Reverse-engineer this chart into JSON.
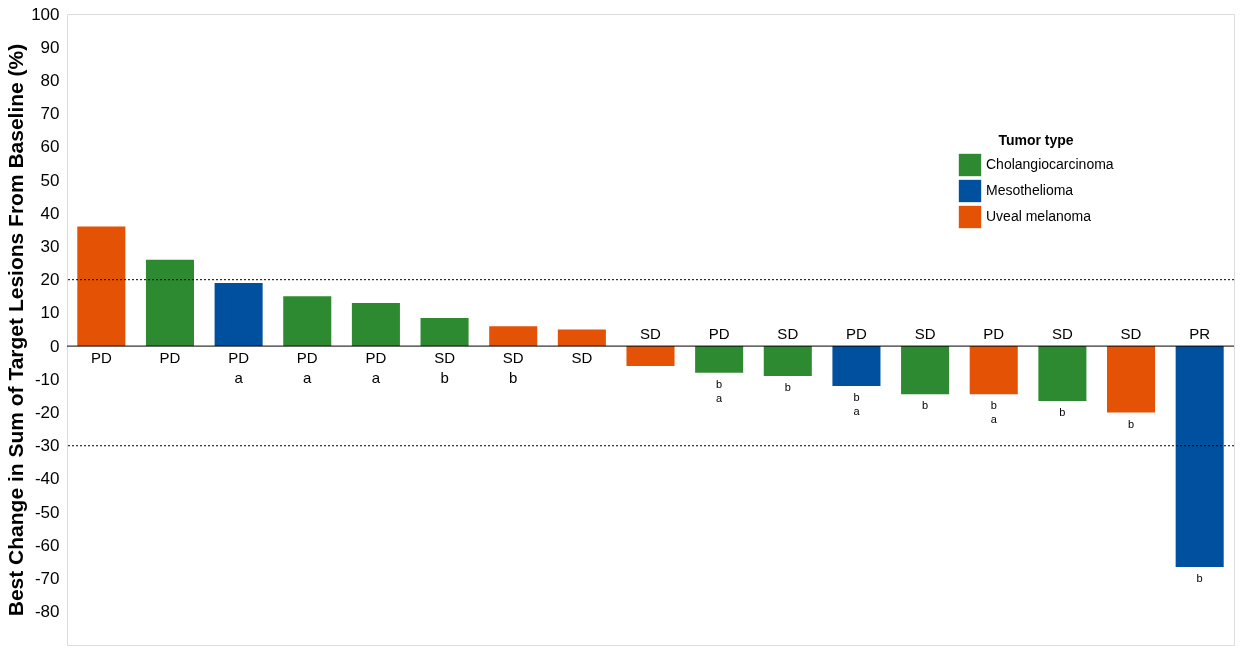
{
  "chart_data": {
    "type": "bar",
    "ylabel": "Best Change in Sum of Target Lesions From Baseline (%)",
    "legend_title": "Tumor type",
    "legend": "top right",
    "grid": false,
    "categories": [
      null,
      null,
      null,
      null,
      null,
      null,
      null,
      null,
      null,
      null,
      null,
      null,
      null,
      null,
      null,
      null,
      null
    ],
    "series": [
      {
        "name": "Cholangiocarcinoma",
        "color": "#2e8a30",
        "values": [
          null,
          26,
          null,
          15,
          13,
          8.5,
          null,
          null,
          null,
          -8,
          -9,
          null,
          -14.5,
          null,
          -16.5,
          null,
          null
        ]
      },
      {
        "name": "Mesothelioma",
        "color": "#0050a0",
        "values": [
          null,
          null,
          19,
          null,
          null,
          null,
          null,
          null,
          null,
          null,
          null,
          -12,
          null,
          null,
          null,
          null,
          -66.5
        ]
      },
      {
        "name": "Uveal melanoma",
        "color": "#e35205",
        "values": [
          36,
          null,
          null,
          null,
          null,
          null,
          6,
          5,
          -6,
          null,
          null,
          null,
          null,
          -14.5,
          null,
          -20,
          null
        ]
      }
    ],
    "value_labels": [
      "PD",
      "PD",
      "PD\na",
      "PD\na",
      "PD\na",
      "SD\nb",
      "SD\nb",
      "SD",
      "SD",
      "PD\nb\na",
      "SD\nb",
      "PD\nb\na",
      "SD\nb",
      "PD\nb\na",
      "SD\nb",
      "SD\nb",
      "PR\nb"
    ],
    "ylim": [
      -90,
      100
    ],
    "yticks": [
      -80,
      -70,
      -60,
      -50,
      -40,
      -30,
      -20,
      -10,
      0,
      10,
      20,
      30,
      40,
      50,
      60,
      70,
      80,
      90,
      100
    ],
    "ref_lines": [
      {
        "axis": "y",
        "value": 20,
        "line_style": "dotted"
      },
      {
        "axis": "y",
        "value": -30,
        "line_style": "dotted"
      }
    ]
  }
}
